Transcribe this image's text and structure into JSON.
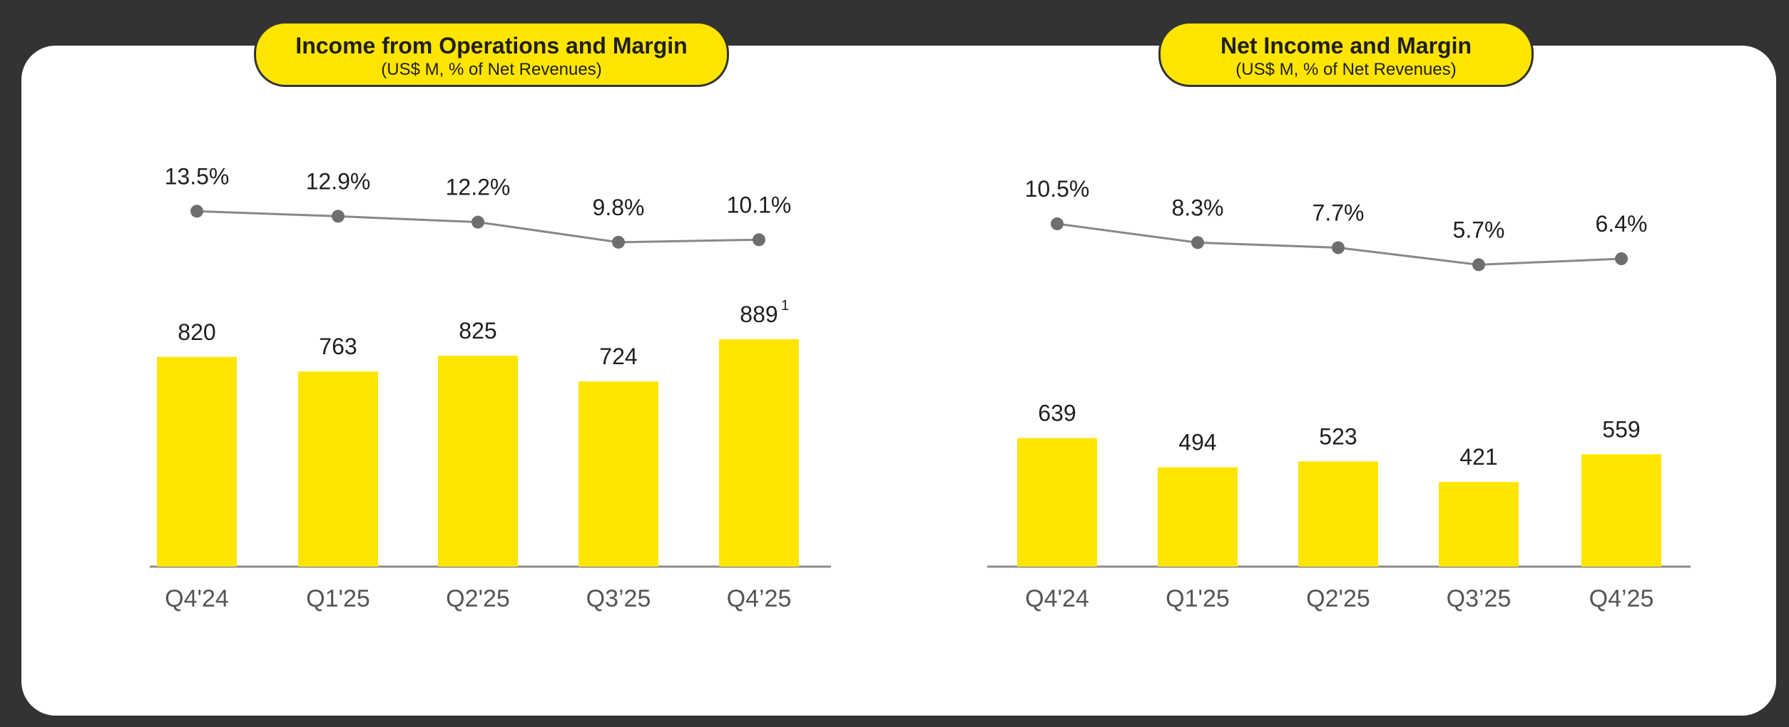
{
  "colors": {
    "bar": "#FFE500",
    "line": "#888888",
    "marker": "#6E6E6E",
    "axis": "#8C8C8C",
    "text": "#1f1f1f",
    "tick": "#555555"
  },
  "chart_data": [
    {
      "type": "bar",
      "title": "Income from Operations and Margin",
      "subtitle": "(US$ M, % of Net Revenues)",
      "categories": [
        "Q4'24",
        "Q1'25",
        "Q2'25",
        "Q3’25",
        "Q4’25"
      ],
      "series": [
        {
          "type": "bar",
          "values": [
            820,
            763,
            825,
            724,
            889
          ],
          "labels": [
            "820",
            "763",
            "825",
            "724",
            "889"
          ]
        },
        {
          "type": "line",
          "values": [
            13.5,
            12.9,
            12.2,
            9.8,
            10.1
          ],
          "labels": [
            "13.5%",
            "12.9%",
            "12.2%",
            "9.8%",
            "10.1%"
          ]
        }
      ],
      "annotations": [
        {
          "category": "Q4’25",
          "text": "1"
        }
      ]
    },
    {
      "type": "bar",
      "title": "Net Income and Margin",
      "subtitle": "(US$ M, % of Net Revenues)",
      "categories": [
        "Q4'24",
        "Q1'25",
        "Q2'25",
        "Q3’25",
        "Q4’25"
      ],
      "series": [
        {
          "type": "bar",
          "values": [
            639,
            494,
            523,
            421,
            559
          ],
          "labels": [
            "639",
            "494",
            "523",
            "421",
            "559"
          ]
        },
        {
          "type": "line",
          "values": [
            10.5,
            8.3,
            7.7,
            5.7,
            6.4
          ],
          "labels": [
            "10.5%",
            "8.3%",
            "7.7%",
            "5.7%",
            "6.4%"
          ]
        }
      ],
      "annotations": []
    }
  ]
}
